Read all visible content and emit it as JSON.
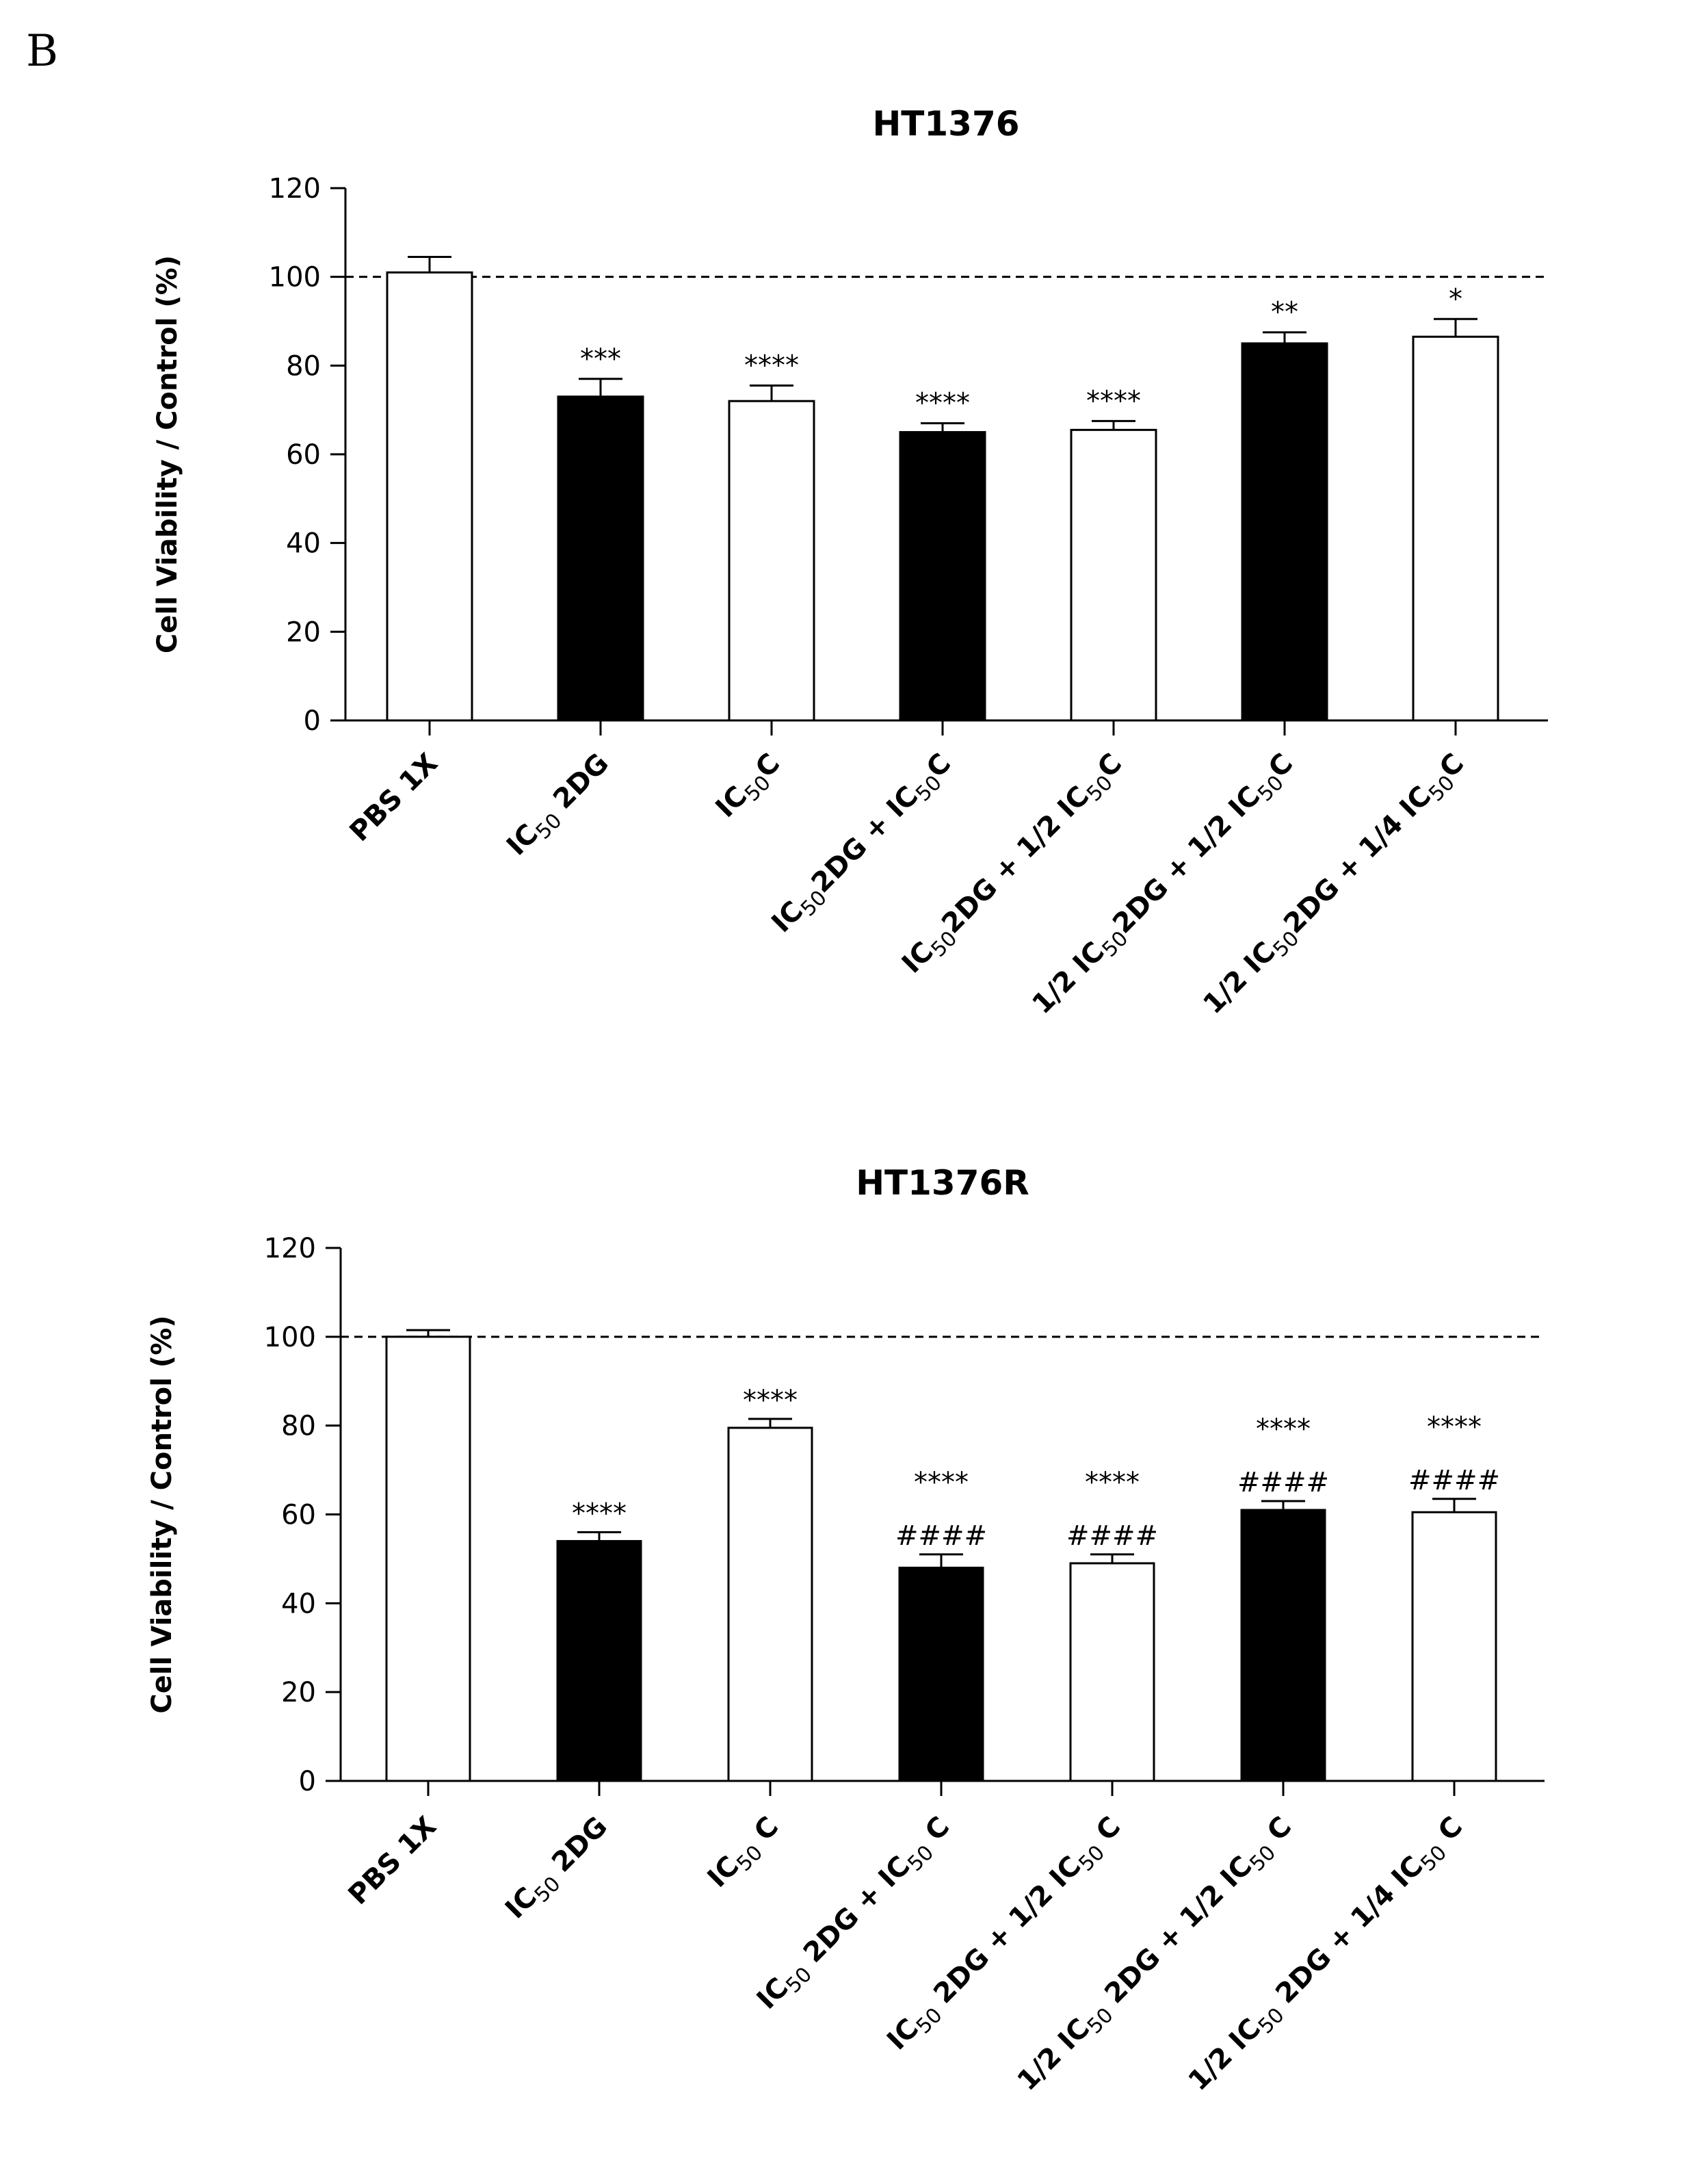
{
  "panel_label": "B",
  "chart_data": [
    {
      "type": "bar",
      "title": "HT1376",
      "ylabel": "Cell Viability / Control (%)",
      "xlabel": "",
      "ylim": [
        0,
        120
      ],
      "yticks": [
        0,
        20,
        40,
        60,
        80,
        100,
        120
      ],
      "reference_line": 100,
      "categories": [
        [
          {
            "t": "PBS 1X"
          }
        ],
        [
          {
            "t": "IC"
          },
          {
            "t": "50",
            "sub": true
          },
          {
            "t": " 2DG"
          }
        ],
        [
          {
            "t": "IC"
          },
          {
            "t": "50",
            "sub": true
          },
          {
            "t": "C"
          }
        ],
        [
          {
            "t": "IC"
          },
          {
            "t": "50",
            "sub": true
          },
          {
            "t": "2DG + IC"
          },
          {
            "t": "50",
            "sub": true
          },
          {
            "t": "C"
          }
        ],
        [
          {
            "t": "IC"
          },
          {
            "t": "50",
            "sub": true
          },
          {
            "t": "2DG + 1/2 IC"
          },
          {
            "t": "50",
            "sub": true
          },
          {
            "t": "C"
          }
        ],
        [
          {
            "t": "1/2 IC"
          },
          {
            "t": "50",
            "sub": true
          },
          {
            "t": "2DG + 1/2 IC"
          },
          {
            "t": "50",
            "sub": true
          },
          {
            "t": "C"
          }
        ],
        [
          {
            "t": "1/2 IC"
          },
          {
            "t": "50",
            "sub": true
          },
          {
            "t": "2DG + 1/4 IC"
          },
          {
            "t": "50",
            "sub": true
          },
          {
            "t": "C"
          }
        ]
      ],
      "values": [
        101,
        73,
        72,
        65,
        65.5,
        85,
        86.5
      ],
      "errors": [
        3.5,
        4,
        3.5,
        2,
        2,
        2.5,
        4
      ],
      "fills": [
        "#ffffff",
        "#000000",
        "#ffffff",
        "#000000",
        "#ffffff",
        "#000000",
        "#ffffff"
      ],
      "annotations": [
        [],
        [
          "***"
        ],
        [
          "****"
        ],
        [
          "****"
        ],
        [
          "****"
        ],
        [
          "**"
        ],
        [
          "*"
        ]
      ]
    },
    {
      "type": "bar",
      "title": "HT1376R",
      "ylabel": "Cell Viability / Control (%)",
      "xlabel": "",
      "ylim": [
        0,
        120
      ],
      "yticks": [
        0,
        20,
        40,
        60,
        80,
        100,
        120
      ],
      "reference_line": 100,
      "categories": [
        [
          {
            "t": "PBS 1X"
          }
        ],
        [
          {
            "t": "IC"
          },
          {
            "t": "50",
            "sub": true
          },
          {
            "t": " 2DG"
          }
        ],
        [
          {
            "t": "IC"
          },
          {
            "t": "50",
            "sub": true
          },
          {
            "t": " C"
          }
        ],
        [
          {
            "t": "IC"
          },
          {
            "t": "50",
            "sub": true
          },
          {
            "t": " 2DG + IC"
          },
          {
            "t": "50",
            "sub": true
          },
          {
            "t": " C"
          }
        ],
        [
          {
            "t": "IC"
          },
          {
            "t": "50",
            "sub": true
          },
          {
            "t": " 2DG + 1/2 IC"
          },
          {
            "t": "50",
            "sub": true
          },
          {
            "t": " C"
          }
        ],
        [
          {
            "t": "1/2 IC"
          },
          {
            "t": "50",
            "sub": true
          },
          {
            "t": " 2DG + 1/2 IC"
          },
          {
            "t": "50",
            "sub": true
          },
          {
            "t": " C"
          }
        ],
        [
          {
            "t": "1/2 IC"
          },
          {
            "t": "50",
            "sub": true
          },
          {
            "t": " 2DG + 1/4 IC"
          },
          {
            "t": "50",
            "sub": true
          },
          {
            "t": " C"
          }
        ]
      ],
      "values": [
        100,
        54,
        79.5,
        48,
        49,
        61,
        60.5
      ],
      "errors": [
        1.5,
        2,
        2,
        3,
        2,
        2,
        3
      ],
      "fills": [
        "#ffffff",
        "#000000",
        "#ffffff",
        "#000000",
        "#ffffff",
        "#000000",
        "#ffffff"
      ],
      "annotations": [
        [],
        [
          "****"
        ],
        [
          "****"
        ],
        [
          "####",
          "****"
        ],
        [
          "####",
          "****"
        ],
        [
          "####",
          "****"
        ],
        [
          "####",
          "****"
        ]
      ]
    }
  ]
}
